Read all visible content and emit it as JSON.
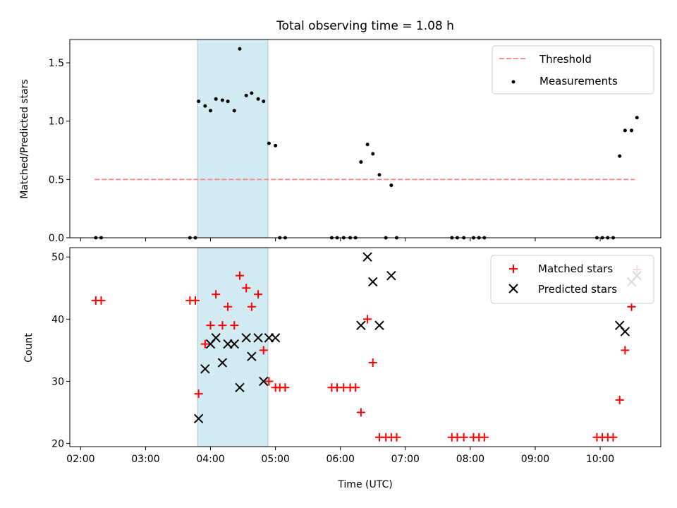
{
  "chart_data": [
    {
      "type": "scatter",
      "title": "Total observing time = 1.08 h",
      "ylabel": "Matched/Predicted stars",
      "xlabel": "",
      "x_unit": "time (UTC)",
      "xlim": [
        "01:50",
        "10:56"
      ],
      "ylim": [
        0,
        1.7
      ],
      "yticks": [
        "0.0",
        "0.5",
        "1.0",
        "1.5"
      ],
      "shaded_span": {
        "x_start": "03:48",
        "x_end": "04:53",
        "color": "#add8e6"
      },
      "legend_placement": "top-right",
      "threshold": {
        "name": "Threshold",
        "y": 0.5,
        "x_start": "02:13",
        "x_end": "10:32",
        "color": "#ff8080",
        "style": "dashed"
      },
      "series": [
        {
          "name": "Measurements",
          "color": "#000000",
          "marker": "dot",
          "points": [
            [
              "02:14",
              0
            ],
            [
              "02:19",
              0
            ],
            [
              "03:41",
              0
            ],
            [
              "03:46",
              0
            ],
            [
              "03:49",
              1.17
            ],
            [
              "03:55",
              1.13
            ],
            [
              "04:00",
              1.09
            ],
            [
              "04:05",
              1.19
            ],
            [
              "04:11",
              1.18
            ],
            [
              "04:16",
              1.17
            ],
            [
              "04:22",
              1.09
            ],
            [
              "04:27",
              1.62
            ],
            [
              "04:33",
              1.22
            ],
            [
              "04:38",
              1.24
            ],
            [
              "04:44",
              1.19
            ],
            [
              "04:49",
              1.17
            ],
            [
              "04:54",
              0.81
            ],
            [
              "05:00",
              0.79
            ],
            [
              "05:04",
              0
            ],
            [
              "05:09",
              0
            ],
            [
              "05:52",
              0
            ],
            [
              "05:57",
              0
            ],
            [
              "06:03",
              0
            ],
            [
              "06:09",
              0
            ],
            [
              "06:14",
              0
            ],
            [
              "06:19",
              0.65
            ],
            [
              "06:25",
              0.8
            ],
            [
              "06:30",
              0.72
            ],
            [
              "06:36",
              0.54
            ],
            [
              "06:42",
              0
            ],
            [
              "06:47",
              0.45
            ],
            [
              "06:52",
              0
            ],
            [
              "07:43",
              0
            ],
            [
              "07:48",
              0
            ],
            [
              "07:54",
              0
            ],
            [
              "08:03",
              0
            ],
            [
              "08:08",
              0
            ],
            [
              "08:13",
              0
            ],
            [
              "09:57",
              0
            ],
            [
              "10:02",
              0
            ],
            [
              "10:07",
              0
            ],
            [
              "10:12",
              0
            ],
            [
              "10:18",
              0.7
            ],
            [
              "10:23",
              0.92
            ],
            [
              "10:29",
              0.92
            ],
            [
              "10:34",
              1.03
            ]
          ]
        }
      ]
    },
    {
      "type": "scatter",
      "title": "",
      "ylabel": "Count",
      "xlabel": "Time (UTC)",
      "x_unit": "time (UTC)",
      "xlim": [
        "01:50",
        "10:56"
      ],
      "ylim": [
        19.5,
        51.5
      ],
      "yticks": [
        "20",
        "30",
        "40",
        "50"
      ],
      "xticks": [
        "02:00",
        "03:00",
        "04:00",
        "05:00",
        "06:00",
        "07:00",
        "08:00",
        "09:00",
        "10:00"
      ],
      "shaded_span": {
        "x_start": "03:48",
        "x_end": "04:53",
        "color": "#add8e6"
      },
      "legend_placement": "top-right",
      "series": [
        {
          "name": "Matched stars",
          "color": "#ff0000",
          "marker": "plus",
          "points": [
            [
              "02:14",
              43
            ],
            [
              "02:19",
              43
            ],
            [
              "03:41",
              43
            ],
            [
              "03:46",
              43
            ],
            [
              "03:49",
              28
            ],
            [
              "03:55",
              36
            ],
            [
              "04:00",
              39
            ],
            [
              "04:05",
              44
            ],
            [
              "04:11",
              39
            ],
            [
              "04:16",
              42
            ],
            [
              "04:22",
              39
            ],
            [
              "04:27",
              47
            ],
            [
              "04:33",
              45
            ],
            [
              "04:38",
              42
            ],
            [
              "04:44",
              44
            ],
            [
              "04:49",
              35
            ],
            [
              "04:54",
              30
            ],
            [
              "05:00",
              29
            ],
            [
              "05:04",
              29
            ],
            [
              "05:09",
              29
            ],
            [
              "05:52",
              29
            ],
            [
              "05:57",
              29
            ],
            [
              "06:03",
              29
            ],
            [
              "06:09",
              29
            ],
            [
              "06:14",
              29
            ],
            [
              "06:19",
              25
            ],
            [
              "06:25",
              40
            ],
            [
              "06:30",
              33
            ],
            [
              "06:36",
              21
            ],
            [
              "06:42",
              21
            ],
            [
              "06:47",
              21
            ],
            [
              "06:52",
              21
            ],
            [
              "07:43",
              21
            ],
            [
              "07:48",
              21
            ],
            [
              "07:54",
              21
            ],
            [
              "08:03",
              21
            ],
            [
              "08:08",
              21
            ],
            [
              "08:13",
              21
            ],
            [
              "09:57",
              21
            ],
            [
              "10:02",
              21
            ],
            [
              "10:07",
              21
            ],
            [
              "10:12",
              21
            ],
            [
              "10:18",
              27
            ],
            [
              "10:23",
              35
            ],
            [
              "10:29",
              42
            ],
            [
              "10:34",
              48
            ]
          ]
        },
        {
          "name": "Predicted stars",
          "color": "#000000",
          "marker": "x",
          "points": [
            [
              "03:49",
              24
            ],
            [
              "03:55",
              32
            ],
            [
              "04:00",
              36
            ],
            [
              "04:05",
              37
            ],
            [
              "04:11",
              33
            ],
            [
              "04:16",
              36
            ],
            [
              "04:22",
              36
            ],
            [
              "04:27",
              29
            ],
            [
              "04:33",
              37
            ],
            [
              "04:38",
              34
            ],
            [
              "04:44",
              37
            ],
            [
              "04:49",
              30
            ],
            [
              "04:54",
              37
            ],
            [
              "05:00",
              37
            ],
            [
              "06:19",
              39
            ],
            [
              "06:25",
              50
            ],
            [
              "06:30",
              46
            ],
            [
              "06:36",
              39
            ],
            [
              "06:47",
              47
            ],
            [
              "10:18",
              39
            ],
            [
              "10:23",
              38
            ],
            [
              "10:29",
              46
            ],
            [
              "10:34",
              47
            ]
          ]
        }
      ]
    }
  ]
}
